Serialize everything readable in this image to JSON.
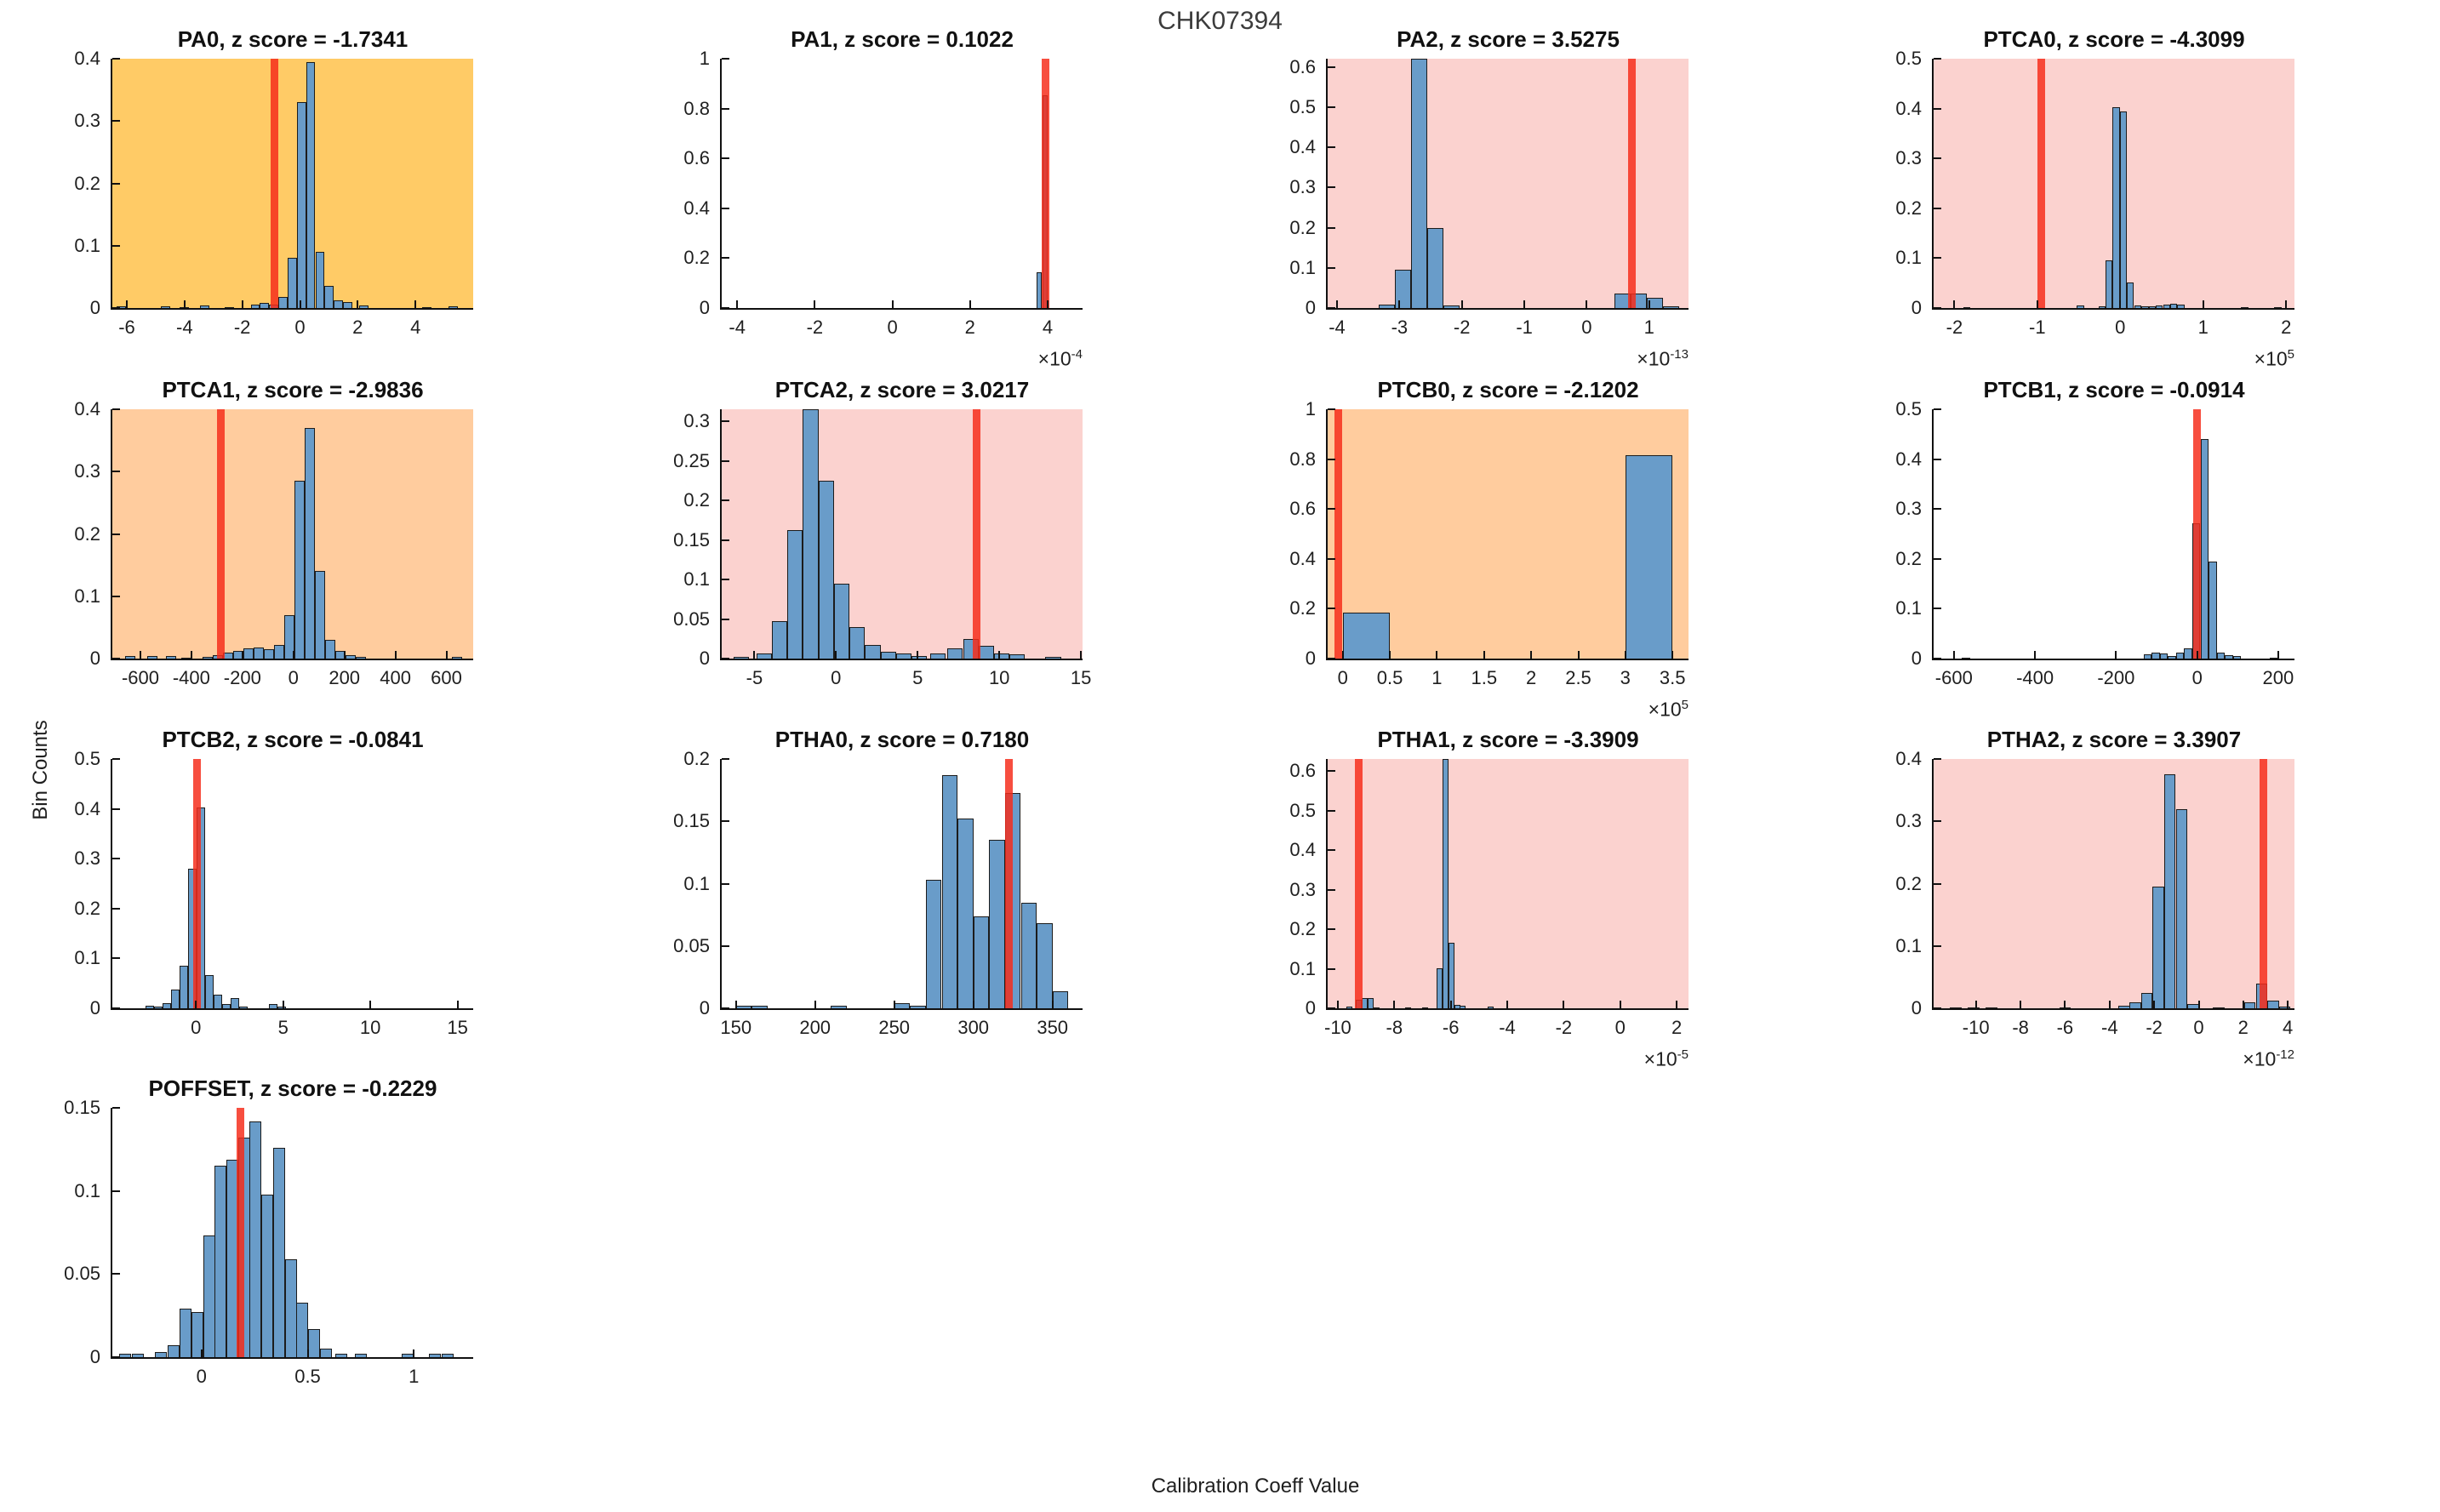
{
  "figure": {
    "title": "CHK07394",
    "xlabel": "Calibration Coeff Value",
    "ylabel": "Bin Counts",
    "multiplier_prefix": "×10"
  },
  "colors": {
    "bar_fill": "#699CC9",
    "bar_edge": "#1c1c1c",
    "red_line": "#F62C1A",
    "red_alpha": 0.84,
    "bg_orange": "#FFCB66",
    "bg_peach": "#FFCC9E",
    "bg_pink": "#FBD2CF",
    "bg_white": "#FFFFFF",
    "spine": "#111111",
    "fig_title_text": "#3C3C3C"
  },
  "chart_data": [
    {
      "type": "bar",
      "name": "PA0",
      "title": "PA0, z score = -1.7341",
      "z_score": -1.7341,
      "bg": "orange",
      "xlim": [
        -6.5,
        6.0
      ],
      "ylim": [
        0,
        0.4
      ],
      "xticks": [
        -6,
        -4,
        -2,
        0,
        2,
        4
      ],
      "yticks": [
        0,
        0.1,
        0.2,
        0.3,
        0.4
      ],
      "x_exp": null,
      "red_x": -0.88,
      "bin_width": 0.32,
      "bars": [
        [
          -6.2,
          0.003
        ],
        [
          -4.65,
          0.003
        ],
        [
          -4.0,
          0.002
        ],
        [
          -3.3,
          0.004
        ],
        [
          -2.45,
          0.002
        ],
        [
          -1.55,
          0.005
        ],
        [
          -1.23,
          0.008
        ],
        [
          -0.91,
          0.005
        ],
        [
          -0.59,
          0.018
        ],
        [
          -0.27,
          0.08
        ],
        [
          0.05,
          0.33
        ],
        [
          0.37,
          0.395
        ],
        [
          0.69,
          0.09
        ],
        [
          1.01,
          0.035
        ],
        [
          1.33,
          0.012
        ],
        [
          1.65,
          0.01
        ],
        [
          2.2,
          0.004
        ],
        [
          4.4,
          0.002
        ],
        [
          5.3,
          0.003
        ]
      ]
    },
    {
      "type": "bar",
      "name": "PA1",
      "title": "PA1, z score = 0.1022",
      "z_score": 0.1022,
      "bg": "white",
      "xlim": [
        -4.4,
        4.9
      ],
      "ylim": [
        0,
        1
      ],
      "xticks": [
        -4,
        -2,
        0,
        2,
        4
      ],
      "yticks": [
        0,
        0.2,
        0.4,
        0.6,
        0.8,
        1
      ],
      "x_exp": "-4",
      "red_x": 3.95,
      "bin_width": 0.13,
      "bars": [
        [
          3.79,
          0.145
        ],
        [
          3.93,
          0.855
        ]
      ]
    },
    {
      "type": "bar",
      "name": "PA2",
      "title": "PA2, z score = 3.5275",
      "z_score": 3.5275,
      "bg": "pink",
      "xlim": [
        -4.15,
        1.63
      ],
      "ylim": [
        0,
        0.62
      ],
      "xticks": [
        -4,
        -3,
        -2,
        -1,
        0,
        1
      ],
      "yticks": [
        0,
        0.1,
        0.2,
        0.3,
        0.4,
        0.5,
        0.6
      ],
      "x_exp": "-13",
      "red_x": 0.72,
      "bin_width": 0.26,
      "bars": [
        [
          -3.2,
          0.008
        ],
        [
          -2.94,
          0.095
        ],
        [
          -2.68,
          0.62
        ],
        [
          -2.42,
          0.2
        ],
        [
          -2.17,
          0.006
        ],
        [
          0.57,
          0.037
        ],
        [
          0.83,
          0.037
        ],
        [
          1.09,
          0.026
        ],
        [
          1.35,
          0.005
        ]
      ]
    },
    {
      "type": "bar",
      "name": "PTCA0",
      "title": "PTCA0, z score = -4.3099",
      "z_score": -4.3099,
      "bg": "pink",
      "xlim": [
        -2.25,
        2.1
      ],
      "ylim": [
        0,
        0.5
      ],
      "xticks": [
        -2,
        -1,
        0,
        1,
        2
      ],
      "yticks": [
        0,
        0.1,
        0.2,
        0.3,
        0.4,
        0.5
      ],
      "x_exp": "5",
      "red_x": -0.95,
      "bin_width": 0.085,
      "bars": [
        [
          -1.85,
          0.002
        ],
        [
          -0.48,
          0.005
        ],
        [
          -0.22,
          0.004
        ],
        [
          -0.135,
          0.095
        ],
        [
          -0.05,
          0.402
        ],
        [
          0.035,
          0.395
        ],
        [
          0.12,
          0.052
        ],
        [
          0.21,
          0.006
        ],
        [
          0.3,
          0.004
        ],
        [
          0.39,
          0.003
        ],
        [
          0.47,
          0.005
        ],
        [
          0.56,
          0.007
        ],
        [
          0.64,
          0.008
        ],
        [
          0.73,
          0.007
        ],
        [
          1.5,
          0.002
        ],
        [
          1.9,
          0.002
        ]
      ]
    },
    {
      "type": "bar",
      "name": "PTCA1",
      "title": "PTCA1, z score = -2.9836",
      "z_score": -2.9836,
      "bg": "peach",
      "xlim": [
        -710,
        705
      ],
      "ylim": [
        0,
        0.4
      ],
      "xticks": [
        -600,
        -400,
        -200,
        0,
        200,
        400,
        600
      ],
      "yticks": [
        0,
        0.1,
        0.2,
        0.3,
        0.4
      ],
      "x_exp": null,
      "red_x": -285,
      "bin_width": 40,
      "bars": [
        [
          -640,
          0.004
        ],
        [
          -555,
          0.004
        ],
        [
          -480,
          0.004
        ],
        [
          -420,
          0.002
        ],
        [
          -337,
          0.003
        ],
        [
          -297,
          0.006
        ],
        [
          -257,
          0.009
        ],
        [
          -217,
          0.013
        ],
        [
          -177,
          0.017
        ],
        [
          -137,
          0.018
        ],
        [
          -97,
          0.015
        ],
        [
          -57,
          0.022
        ],
        [
          -17,
          0.07
        ],
        [
          23,
          0.285
        ],
        [
          63,
          0.37
        ],
        [
          103,
          0.14
        ],
        [
          143,
          0.03
        ],
        [
          183,
          0.012
        ],
        [
          223,
          0.005
        ],
        [
          263,
          0.003
        ],
        [
          640,
          0.003
        ]
      ]
    },
    {
      "type": "bar",
      "name": "PTCA2",
      "title": "PTCA2, z score = 3.0217",
      "z_score": 3.0217,
      "bg": "pink",
      "xlim": [
        -7,
        15.1
      ],
      "ylim": [
        0,
        0.315
      ],
      "xticks": [
        -5,
        0,
        5,
        10,
        15
      ],
      "yticks": [
        0,
        0.05,
        0.1,
        0.15,
        0.2,
        0.25,
        0.3
      ],
      "x_exp": null,
      "red_x": 8.6,
      "bin_width": 0.95,
      "bars": [
        [
          -5.8,
          0.002
        ],
        [
          -4.4,
          0.006
        ],
        [
          -3.45,
          0.047
        ],
        [
          -2.5,
          0.162
        ],
        [
          -1.55,
          0.315
        ],
        [
          -0.6,
          0.225
        ],
        [
          0.35,
          0.095
        ],
        [
          1.3,
          0.04
        ],
        [
          2.25,
          0.017
        ],
        [
          3.2,
          0.009
        ],
        [
          4.15,
          0.006
        ],
        [
          5.1,
          0.003
        ],
        [
          6.25,
          0.006
        ],
        [
          7.3,
          0.013
        ],
        [
          8.25,
          0.025
        ],
        [
          9.2,
          0.016
        ],
        [
          10.15,
          0.006
        ],
        [
          11.1,
          0.005
        ],
        [
          13.3,
          0.002
        ]
      ]
    },
    {
      "type": "bar",
      "name": "PTCB0",
      "title": "PTCB0, z score = -2.1202",
      "z_score": -2.1202,
      "bg": "peach",
      "xlim": [
        -0.16,
        3.67
      ],
      "ylim": [
        0,
        1
      ],
      "xticks": [
        0,
        0.5,
        1,
        1.5,
        2,
        2.5,
        3,
        3.5
      ],
      "yticks": [
        0,
        0.2,
        0.4,
        0.6,
        0.8,
        1
      ],
      "x_exp": "5",
      "red_x": -0.05,
      "bin_width": 0.5,
      "bars": [
        [
          0.25,
          0.185
        ],
        [
          3.25,
          0.815
        ]
      ]
    },
    {
      "type": "bar",
      "name": "PTCB1",
      "title": "PTCB1, z score = -0.0914",
      "z_score": -0.0914,
      "bg": "white",
      "xlim": [
        -650,
        240
      ],
      "ylim": [
        0,
        0.5
      ],
      "xticks": [
        -600,
        -400,
        -200,
        0,
        200
      ],
      "yticks": [
        0,
        0.1,
        0.2,
        0.3,
        0.4,
        0.5
      ],
      "x_exp": null,
      "red_x": 0,
      "bin_width": 20,
      "bars": [
        [
          -570,
          0.002
        ],
        [
          -122,
          0.008
        ],
        [
          -102,
          0.012
        ],
        [
          -82,
          0.01
        ],
        [
          -62,
          0.006
        ],
        [
          -42,
          0.012
        ],
        [
          -22,
          0.02
        ],
        [
          -2,
          0.272
        ],
        [
          18,
          0.44
        ],
        [
          38,
          0.195
        ],
        [
          58,
          0.012
        ],
        [
          78,
          0.007
        ],
        [
          98,
          0.005
        ],
        [
          190,
          0.002
        ]
      ]
    },
    {
      "type": "bar",
      "name": "PTCB2",
      "title": "PTCB2, z score = -0.0841",
      "z_score": -0.0841,
      "bg": "white",
      "xlim": [
        -4.8,
        15.9
      ],
      "ylim": [
        0,
        0.5
      ],
      "xticks": [
        0,
        5,
        10,
        15
      ],
      "yticks": [
        0,
        0.1,
        0.2,
        0.3,
        0.4,
        0.5
      ],
      "x_exp": null,
      "red_x": 0.04,
      "bin_width": 0.49,
      "bars": [
        [
          -2.65,
          0.006
        ],
        [
          -2.16,
          0.004
        ],
        [
          -1.67,
          0.01
        ],
        [
          -1.18,
          0.038
        ],
        [
          -0.69,
          0.086
        ],
        [
          -0.2,
          0.28
        ],
        [
          0.29,
          0.402
        ],
        [
          0.78,
          0.067
        ],
        [
          1.27,
          0.028
        ],
        [
          1.76,
          0.009
        ],
        [
          2.25,
          0.02
        ],
        [
          2.74,
          0.003
        ],
        [
          4.41,
          0.009
        ],
        [
          4.9,
          0.004
        ]
      ]
    },
    {
      "type": "bar",
      "name": "PTHA0",
      "title": "PTHA0, z score = 0.7180",
      "z_score": 0.718,
      "bg": "white",
      "xlim": [
        141,
        369
      ],
      "ylim": [
        0,
        0.2
      ],
      "xticks": [
        150,
        200,
        250,
        300,
        350
      ],
      "yticks": [
        0,
        0.05,
        0.1,
        0.15,
        0.2
      ],
      "x_exp": null,
      "red_x": 322.5,
      "bin_width": 10,
      "bars": [
        [
          155,
          0.002
        ],
        [
          165,
          0.002
        ],
        [
          215,
          0.002
        ],
        [
          255,
          0.004
        ],
        [
          265,
          0.002
        ],
        [
          275,
          0.103
        ],
        [
          285,
          0.187
        ],
        [
          295,
          0.152
        ],
        [
          305,
          0.074
        ],
        [
          315,
          0.135
        ],
        [
          325,
          0.173
        ],
        [
          335,
          0.085
        ],
        [
          345,
          0.068
        ],
        [
          355,
          0.014
        ]
      ]
    },
    {
      "type": "bar",
      "name": "PTHA1",
      "title": "PTHA1, z score = -3.3909",
      "z_score": -3.3909,
      "bg": "pink",
      "xlim": [
        -10.36,
        2.42
      ],
      "ylim": [
        0,
        0.63
      ],
      "xticks": [
        -10,
        -8,
        -6,
        -4,
        -2,
        0,
        2
      ],
      "yticks": [
        0,
        0.1,
        0.2,
        0.3,
        0.4,
        0.5,
        0.6
      ],
      "x_exp": "-5",
      "red_x": -9.25,
      "bin_width": 0.21,
      "bars": [
        [
          -9.6,
          0.005
        ],
        [
          -9.25,
          0.022
        ],
        [
          -9.04,
          0.025
        ],
        [
          -8.83,
          0.026
        ],
        [
          -8.62,
          0.003
        ],
        [
          -7.5,
          0.002
        ],
        [
          -6.9,
          0.003
        ],
        [
          -6.41,
          0.102
        ],
        [
          -6.2,
          0.63
        ],
        [
          -5.99,
          0.165
        ],
        [
          -5.78,
          0.009
        ],
        [
          -5.57,
          0.007
        ],
        [
          -4.6,
          0.004
        ]
      ]
    },
    {
      "type": "bar",
      "name": "PTHA2",
      "title": "PTHA2, z score = 3.3907",
      "z_score": 3.3907,
      "bg": "pink",
      "xlim": [
        -11.9,
        4.3
      ],
      "ylim": [
        0,
        0.4
      ],
      "xticks": [
        -10,
        -8,
        -6,
        -4,
        -2,
        0,
        2,
        4
      ],
      "yticks": [
        0,
        0.1,
        0.2,
        0.3,
        0.4
      ],
      "x_exp": "-12",
      "red_x": 2.9,
      "bin_width": 0.52,
      "bars": [
        [
          -10.9,
          0.002
        ],
        [
          -10.1,
          0.002
        ],
        [
          -9.3,
          0.002
        ],
        [
          -6.0,
          0.002
        ],
        [
          -3.35,
          0.004
        ],
        [
          -2.85,
          0.009
        ],
        [
          -2.33,
          0.024
        ],
        [
          -1.81,
          0.195
        ],
        [
          -1.29,
          0.375
        ],
        [
          -0.77,
          0.32
        ],
        [
          -0.25,
          0.007
        ],
        [
          0.9,
          0.002
        ],
        [
          2.3,
          0.009
        ],
        [
          2.82,
          0.04
        ],
        [
          3.34,
          0.012
        ],
        [
          3.86,
          0.003
        ]
      ]
    },
    {
      "type": "bar",
      "name": "POFFSET",
      "title": "POFFSET, z score = -0.2229",
      "z_score": -0.2229,
      "bg": "white",
      "xlim": [
        -0.42,
        1.28
      ],
      "ylim": [
        0,
        0.15
      ],
      "xticks": [
        0,
        0.5,
        1
      ],
      "yticks": [
        0,
        0.05,
        0.1,
        0.15
      ],
      "x_exp": null,
      "red_x": 0.185,
      "bin_width": 0.056,
      "bars": [
        [
          -0.36,
          0.002
        ],
        [
          -0.3,
          0.002
        ],
        [
          -0.19,
          0.003
        ],
        [
          -0.13,
          0.007
        ],
        [
          -0.075,
          0.029
        ],
        [
          -0.02,
          0.027
        ],
        [
          0.035,
          0.073
        ],
        [
          0.09,
          0.115
        ],
        [
          0.145,
          0.119
        ],
        [
          0.2,
          0.132
        ],
        [
          0.255,
          0.142
        ],
        [
          0.31,
          0.098
        ],
        [
          0.365,
          0.126
        ],
        [
          0.42,
          0.059
        ],
        [
          0.475,
          0.033
        ],
        [
          0.53,
          0.017
        ],
        [
          0.585,
          0.005
        ],
        [
          0.66,
          0.002
        ],
        [
          0.75,
          0.002
        ],
        [
          0.97,
          0.002
        ],
        [
          1.1,
          0.002
        ],
        [
          1.16,
          0.002
        ]
      ]
    }
  ]
}
